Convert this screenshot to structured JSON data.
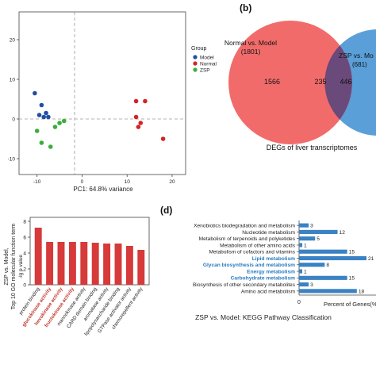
{
  "panel_labels": {
    "b": "(b)",
    "d": "(d)"
  },
  "colors": {
    "model": "#1f4fa3",
    "normal": "#d42424",
    "zsp": "#3aae3a",
    "venn_left": "#f26b6b",
    "venn_right": "#5a9fd8",
    "venn_overlap": "#6a4a7a",
    "bar_red": "#d63a3a",
    "kegg_blue": "#3a82c4",
    "label_red": "#c0392b",
    "label_blue": "#2a7bbf"
  },
  "pca": {
    "xlabel": "PC1: 64.8% variance",
    "legend_title": "Group",
    "legend_items": [
      "Model",
      "Normal",
      "ZSP"
    ],
    "x_ticks": [
      "-10",
      "0",
      "10",
      "20"
    ],
    "y_ticks": [
      "20",
      "10",
      "0",
      "-10"
    ]
  },
  "venn": {
    "left_label": "Normal vs. Model",
    "left_count": "(1801)",
    "right_label": "ZSP vs. Mo",
    "right_count": "(681)",
    "left_only": "1566",
    "overlap": "235",
    "right_only": "446",
    "caption": "DEGs of liver transcriptomes"
  },
  "go_bar": {
    "ylabel_lines": [
      "ZSP vs. Model,",
      "Top 10 GO molecular function term",
      "-lg p value"
    ],
    "y_ticks": [
      "8",
      "6",
      "4",
      "2",
      "0"
    ]
  },
  "kegg": {
    "axis_label": "Percent of Genes(%)",
    "tick0": "0",
    "caption": "ZSP vs. Model: KEGG Pathway Classification"
  },
  "chart_data": [
    {
      "type": "scatter",
      "xlabel": "PC1: 64.8% variance",
      "xlim": [
        -14,
        23
      ],
      "ylim": [
        -14,
        27
      ],
      "series": [
        {
          "name": "Model",
          "points": [
            [
              -10.5,
              6.5
            ],
            [
              -9,
              3.5
            ],
            [
              -8,
              1.5
            ],
            [
              -8.5,
              0.5
            ],
            [
              -7.5,
              0.5
            ],
            [
              -9.5,
              1
            ]
          ]
        },
        {
          "name": "Normal",
          "points": [
            [
              12,
              4.5
            ],
            [
              14,
              4.5
            ],
            [
              12,
              0.5
            ],
            [
              13,
              -1
            ],
            [
              12.5,
              -2
            ],
            [
              18,
              -5
            ]
          ]
        },
        {
          "name": "ZSP",
          "points": [
            [
              -10,
              -3
            ],
            [
              -6,
              -2
            ],
            [
              -5,
              -1
            ],
            [
              -4,
              -0.5
            ],
            [
              -9,
              -6
            ],
            [
              -7,
              -7
            ]
          ]
        }
      ]
    },
    {
      "type": "bar",
      "categories": [
        "protein binding",
        "glucokinase activity",
        "hexokinase activity",
        "fructokinase activity",
        "mannokinase activity",
        "CARD domain binding",
        "aromatase activity",
        "lipopolysaccharide binding",
        "GTPase activator activity",
        "chemorepellent activity"
      ],
      "highlighted": [
        "glucokinase activity",
        "hexokinase activity",
        "fructokinase activity"
      ],
      "values": [
        7.2,
        5.4,
        5.4,
        5.4,
        5.4,
        5.3,
        5.2,
        5.2,
        4.9,
        4.4
      ],
      "ylim": [
        0,
        8.5
      ]
    },
    {
      "type": "bar",
      "orientation": "horizontal",
      "xlabel": "Percent of Genes(%)",
      "categories": [
        "Xenobiotics biodegradation and metabolism",
        "Nucleotide metabolism",
        "Metabolism of terpenoids and polyketides",
        "Metabolism of other amino acids",
        "Metabolism of cofactors and vitamins",
        "Lipid metabolism",
        "Glycan biosynthesis and metabolism",
        "Energy metabolism",
        "Carbohydrate metabolism",
        "Biosynthesis of other secondary metabolites",
        "Amino acid metabolism"
      ],
      "highlighted": [
        "Lipid metabolism",
        "Glycan biosynthesis and metabolism",
        "Energy metabolism",
        "Carbohydrate metabolism"
      ],
      "values": [
        3,
        12,
        5,
        1,
        15,
        21,
        8,
        1,
        15,
        3,
        18
      ],
      "value_labels": [
        "3",
        "12",
        "5",
        "1",
        "15",
        "21",
        "8",
        "1",
        "15",
        "3",
        "18"
      ],
      "xlim": [
        0,
        22
      ]
    }
  ]
}
